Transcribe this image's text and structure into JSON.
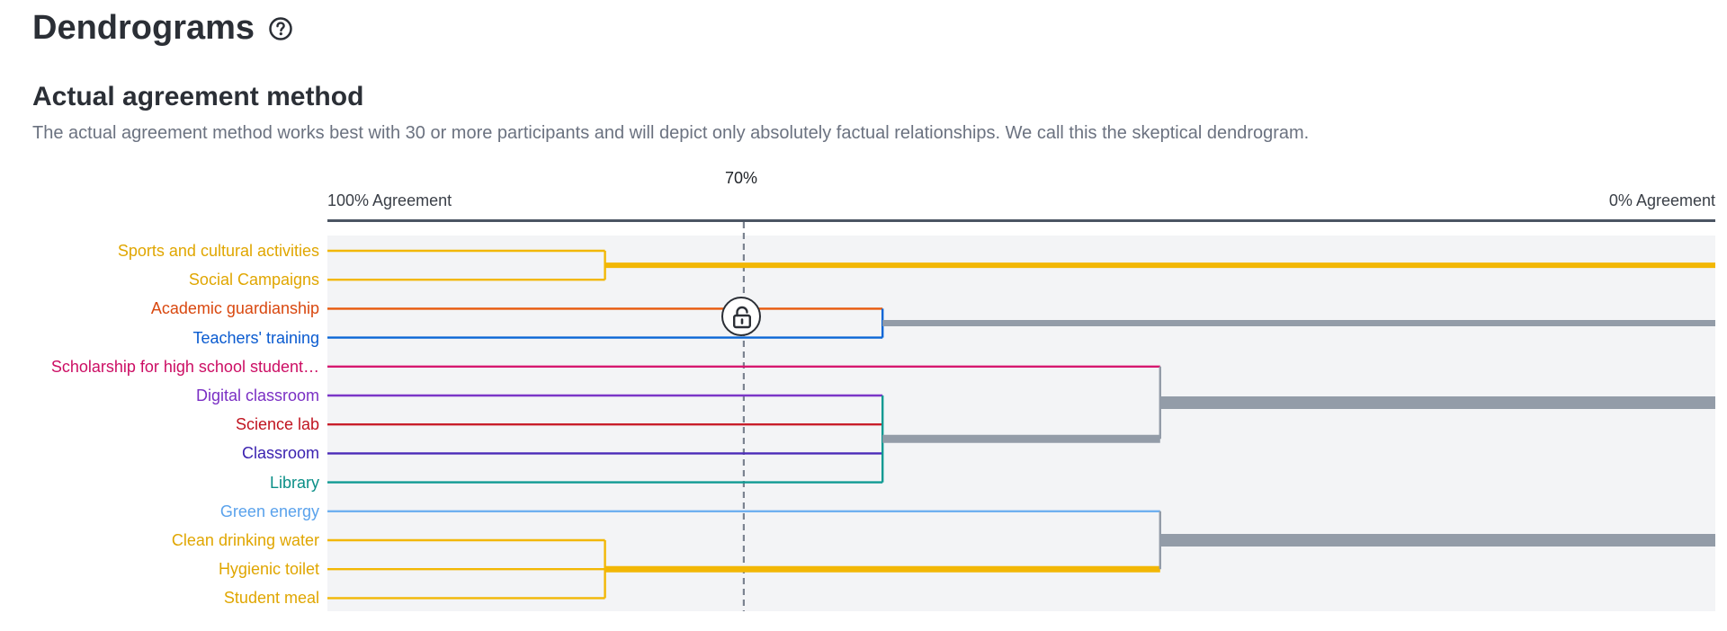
{
  "header": {
    "title": "Dendrograms",
    "help_icon": "help-circle-icon"
  },
  "section": {
    "title": "Actual agreement method",
    "description": "The actual agreement method works best with 30 or more participants and will depict only absolutely factual relationships. We call this the skeptical dendrogram."
  },
  "axis": {
    "left_label": "100% Agreement",
    "right_label": "0% Agreement",
    "cutoff_label": "70%",
    "cutoff_value": 70,
    "lock_icon": "unlock-icon"
  },
  "colors": {
    "yellow": "#f2b705",
    "orange": "#e8590c",
    "blue": "#0a66d6",
    "magenta": "#d6186f",
    "violet": "#7b35c7",
    "red": "#c81e2a",
    "indigo": "#4b2bb8",
    "teal": "#0f9a93",
    "lightblue": "#6fb0f0",
    "gray": "#939ca8",
    "label_yellow": "#e0a600",
    "label_orange": "#d9480f",
    "label_blue": "#0a5bd0",
    "label_magenta": "#cc0e64",
    "label_violet": "#7a2fc4",
    "label_red": "#c01420",
    "label_indigo": "#3b22b0",
    "label_teal": "#0b8f87",
    "label_lightblue": "#5aa2ec"
  },
  "leaves": [
    {
      "label": "Sports and cultural activities",
      "color": "yellow"
    },
    {
      "label": "Social Campaigns",
      "color": "yellow"
    },
    {
      "label": "Academic guardianship",
      "color": "orange"
    },
    {
      "label": "Teachers' training",
      "color": "blue"
    },
    {
      "label": "Scholarship for high school student…",
      "color": "magenta"
    },
    {
      "label": "Digital classroom",
      "color": "violet"
    },
    {
      "label": "Science lab",
      "color": "red"
    },
    {
      "label": "Classroom",
      "color": "indigo"
    },
    {
      "label": "Library",
      "color": "teal"
    },
    {
      "label": "Green energy",
      "color": "lightblue"
    },
    {
      "label": "Clean drinking water",
      "color": "yellow"
    },
    {
      "label": "Hygienic toilet",
      "color": "yellow"
    },
    {
      "label": "Student meal",
      "color": "yellow"
    }
  ],
  "clusters": [
    {
      "members": [
        0,
        1
      ],
      "agreement": 80,
      "color": "yellow"
    },
    {
      "members": [
        2,
        3
      ],
      "agreement": 60,
      "color": "gray"
    },
    {
      "members": [
        5,
        6,
        7,
        8
      ],
      "agreement": 60,
      "color": "gray"
    },
    {
      "members": [
        10,
        11,
        12
      ],
      "agreement": 80,
      "color": "yellow"
    },
    {
      "members": [
        4,
        5,
        6,
        7,
        8
      ],
      "agreement": 40,
      "color": "gray"
    },
    {
      "members": [
        9,
        10,
        11,
        12
      ],
      "agreement": 40,
      "color": "gray"
    }
  ]
}
